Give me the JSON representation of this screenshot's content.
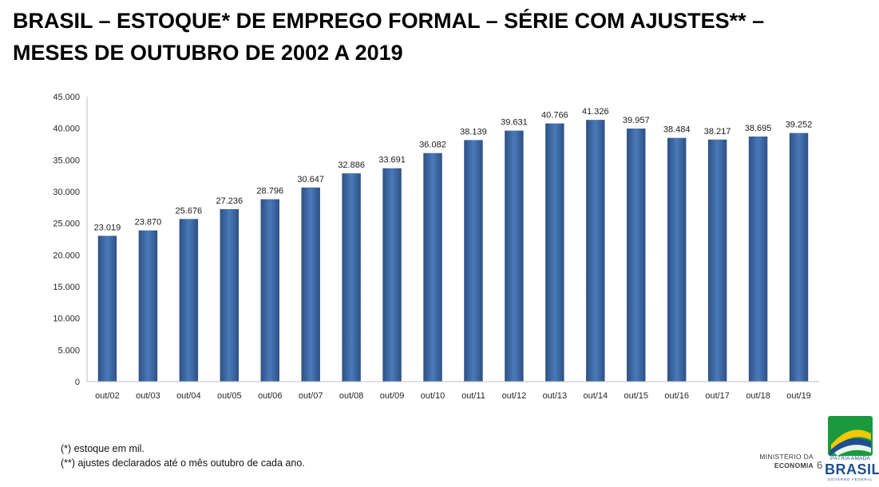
{
  "header": {
    "title_line1": "BRASIL – ESTOQUE* DE EMPREGO FORMAL – SÉRIE COM AJUSTES** –",
    "title_line2": "MESES DE OUTUBRO DE 2002 A 2019"
  },
  "chart_data": {
    "type": "bar",
    "title": "BRASIL – ESTOQUE* DE EMPREGO FORMAL – SÉRIE COM AJUSTES** – MESES DE OUTUBRO DE 2002 A 2019",
    "categories": [
      "out/02",
      "out/03",
      "out/04",
      "out/05",
      "out/06",
      "out/07",
      "out/08",
      "out/09",
      "out/10",
      "out/11",
      "out/12",
      "out/13",
      "out/14",
      "out/15",
      "out/16",
      "out/17",
      "out/18",
      "out/19"
    ],
    "values": [
      23019,
      23870,
      25676,
      27236,
      28796,
      30647,
      32886,
      33691,
      36082,
      38139,
      39631,
      40766,
      41326,
      39957,
      38484,
      38217,
      38695,
      39252
    ],
    "data_labels": [
      "23.019",
      "23.870",
      "25.676",
      "27.236",
      "28.796",
      "30.647",
      "32.886",
      "33.691",
      "36.082",
      "38.139",
      "39.631",
      "40.766",
      "41.326",
      "39.957",
      "38.484",
      "38.217",
      "38.695",
      "39.252"
    ],
    "y_ticks": [
      0,
      5000,
      10000,
      15000,
      20000,
      25000,
      30000,
      35000,
      40000,
      45000
    ],
    "y_tick_labels": [
      "0",
      "5.000",
      "10.000",
      "15.000",
      "20.000",
      "25.000",
      "30.000",
      "35.000",
      "40.000",
      "45.000"
    ],
    "ylim": [
      0,
      45000
    ],
    "xlabel": "",
    "ylabel": "",
    "grid": false,
    "colors": {
      "bar_edge": "#2e5085",
      "bar_center": "#4a7ab9",
      "axis": "#bfbfbf"
    }
  },
  "footnotes": {
    "note1": "(*) estoque em mil.",
    "note2": "(**) ajustes declarados até o mês outubro de cada ano."
  },
  "footer": {
    "ministry_line1": "MINISTÉRIO DA",
    "ministry_line2": "ECONOMIA",
    "page_number": "6",
    "brand_top": "PÁTRIA AMADA",
    "brand_main": "BRASIL",
    "brand_sub": "GOVERNO FEDERAL",
    "brand_colors": {
      "green": "#1a9a3c",
      "yellow": "#f5c800",
      "blue": "#1d4f91"
    }
  }
}
